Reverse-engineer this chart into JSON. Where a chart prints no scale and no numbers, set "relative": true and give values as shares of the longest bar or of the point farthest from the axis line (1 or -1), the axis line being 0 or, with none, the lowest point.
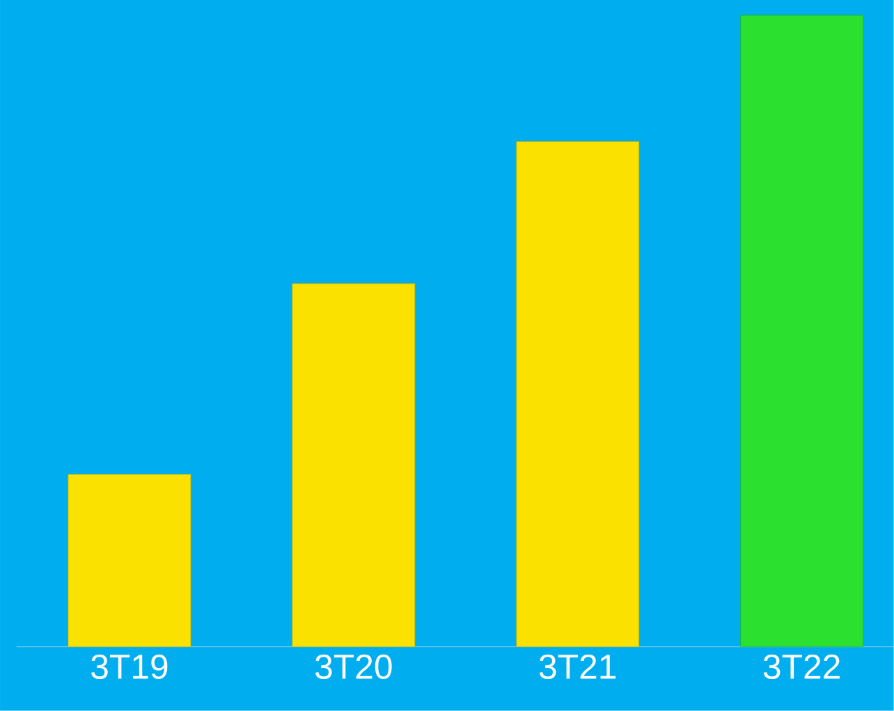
{
  "chart_data": {
    "type": "bar",
    "relative": true,
    "categories": [
      "3T19",
      "3T20",
      "3T21",
      "3T22"
    ],
    "values": [
      0.273,
      0.575,
      0.8,
      1
    ],
    "colors": [
      "#fbe100",
      "#fbe100",
      "#fbe100",
      "#2be02f"
    ]
  }
}
